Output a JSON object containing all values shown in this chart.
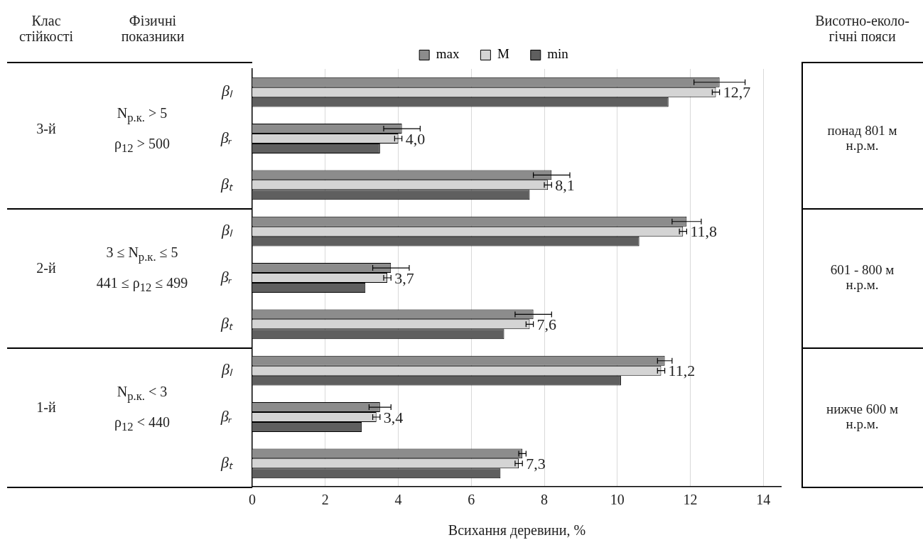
{
  "chart_data": {
    "type": "bar",
    "orientation": "horizontal",
    "xlabel": "Всихання деревини, %",
    "categories": [
      "βₗ",
      "βᵣ",
      "βₜ",
      "βₗ",
      "βᵣ",
      "βₜ",
      "βₗ",
      "βᵣ",
      "βₜ"
    ],
    "series": [
      {
        "name": "max",
        "color": "#8c8c8c",
        "values": [
          12.8,
          4.1,
          8.2,
          11.9,
          3.8,
          7.7,
          11.3,
          3.5,
          7.4
        ],
        "errors": [
          0.7,
          0.5,
          0.5,
          0.4,
          0.5,
          0.5,
          0.2,
          0.3,
          0.1
        ]
      },
      {
        "name": "M",
        "color": "#d4d4d4",
        "values": [
          12.7,
          4.0,
          8.1,
          11.8,
          3.7,
          7.6,
          11.2,
          3.4,
          7.3
        ],
        "errors": [
          0.1,
          0.1,
          0.1,
          0.1,
          0.1,
          0.1,
          0.1,
          0.1,
          0.1
        ],
        "value_labels": [
          "12,7",
          "4,0",
          "8,1",
          "11,8",
          "3,7",
          "7,6",
          "11,2",
          "3,4",
          "7,3"
        ]
      },
      {
        "name": "min",
        "color": "#5f5f5f",
        "values": [
          11.4,
          3.5,
          7.6,
          10.6,
          3.1,
          6.9,
          10.1,
          3.0,
          6.8
        ]
      }
    ],
    "xlim": [
      0,
      14.5
    ],
    "xticks": [
      0,
      2,
      4,
      6,
      8,
      10,
      12,
      14
    ],
    "grid": "x",
    "legend": "top",
    "annotations": [
      "Клас стійкості",
      "Фізичні показники",
      "Висотно-еколо-гічні пояси",
      "3-й",
      "N$_{р.к.}$ > 5",
      "ρ$_{12}$ > 500",
      "понад 801 м н.р.м.",
      "2-й",
      "3 ≤ N$_{р.к.}$ ≤ 5",
      "441 ≤ ρ$_{12}$ ≤ 499",
      "601 - 800 м н.р.м.",
      "1-й",
      "N$_{р.к.}$ < 3",
      "ρ$_{12}$ < 440",
      "нижче 600 м н.р.м."
    ]
  }
}
